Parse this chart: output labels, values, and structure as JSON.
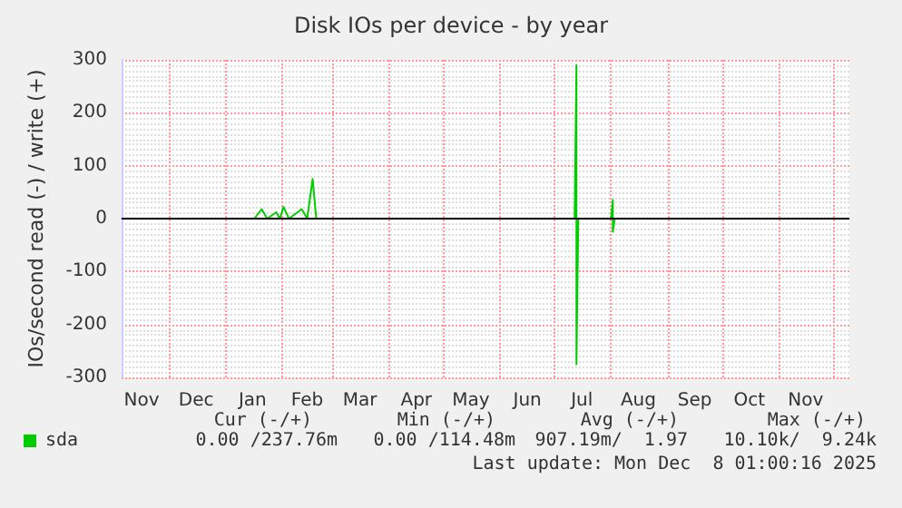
{
  "chart_data": {
    "type": "line",
    "title": "Disk IOs per device - by year",
    "ylabel": "IOs/second read (-) / write (+)",
    "x": [
      "2024-11-05",
      "2025-01-17",
      "2025-01-21",
      "2025-01-24",
      "2025-01-29",
      "2025-01-31",
      "2025-02-02",
      "2025-02-05",
      "2025-02-12",
      "2025-02-15",
      "2025-02-18",
      "2025-02-20",
      "2025-07-12",
      "2025-07-13",
      "2025-07-13",
      "2025-07-14",
      "2025-08-01",
      "2025-08-02",
      "2025-08-02",
      "2025-08-03",
      "2025-12-08"
    ],
    "series": [
      {
        "name": "sda",
        "color": "#00cc00",
        "values": [
          0,
          0,
          18,
          0,
          12,
          0,
          22,
          0,
          18,
          0,
          75,
          0,
          0,
          290,
          -275,
          0,
          0,
          35,
          -25,
          0,
          0
        ]
      }
    ],
    "xlim": [
      "2024-11-05",
      "2025-12-10"
    ],
    "xticks": [
      {
        "value": "2024-11-16",
        "label": "Nov"
      },
      {
        "value": "2024-12-01",
        "label": null
      },
      {
        "value": "2024-12-16",
        "label": "Dec"
      },
      {
        "value": "2025-01-01",
        "label": null
      },
      {
        "value": "2025-01-16",
        "label": "Jan"
      },
      {
        "value": "2025-02-01",
        "label": null
      },
      {
        "value": "2025-02-15",
        "label": "Feb"
      },
      {
        "value": "2025-03-01",
        "label": null
      },
      {
        "value": "2025-03-16",
        "label": "Mar"
      },
      {
        "value": "2025-04-01",
        "label": null
      },
      {
        "value": "2025-04-16",
        "label": "Apr"
      },
      {
        "value": "2025-05-01",
        "label": null
      },
      {
        "value": "2025-05-16",
        "label": "May"
      },
      {
        "value": "2025-06-01",
        "label": null
      },
      {
        "value": "2025-06-16",
        "label": "Jun"
      },
      {
        "value": "2025-07-01",
        "label": null
      },
      {
        "value": "2025-07-16",
        "label": "Jul"
      },
      {
        "value": "2025-08-01",
        "label": null
      },
      {
        "value": "2025-08-16",
        "label": "Aug"
      },
      {
        "value": "2025-09-01",
        "label": null
      },
      {
        "value": "2025-09-16",
        "label": "Sep"
      },
      {
        "value": "2025-10-01",
        "label": null
      },
      {
        "value": "2025-10-16",
        "label": "Oct"
      },
      {
        "value": "2025-11-01",
        "label": null
      },
      {
        "value": "2025-11-16",
        "label": "Nov"
      },
      {
        "value": "2025-12-01",
        "label": null
      }
    ],
    "ylim": [
      -300,
      300
    ],
    "yticks": [
      -300,
      -200,
      -100,
      0,
      100,
      200,
      300
    ],
    "grid": true,
    "legend": "bottom left",
    "ref_lines": [
      {
        "axis": "y",
        "value": 0,
        "color": "#000000"
      }
    ],
    "annotations": [
      "Cur (-/+)",
      "Min (-/+)",
      "Avg (-/+)",
      "Max (-/+)",
      "0.00 /237.76m",
      "0.00 /114.48m",
      "907.19m/  1.97",
      "10.10k/  9.24k",
      "Last update: Mon Dec  8 01:00:16 2025"
    ]
  }
}
